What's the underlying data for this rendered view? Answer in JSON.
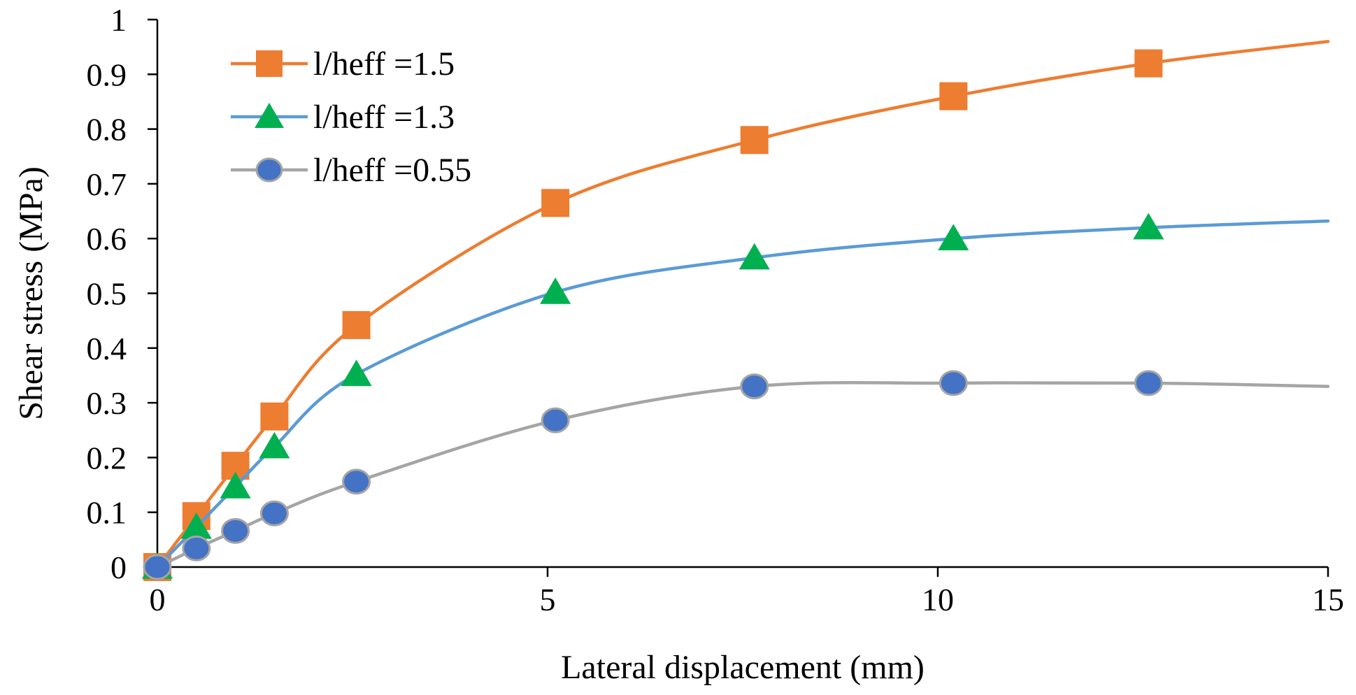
{
  "chart_data": {
    "type": "line",
    "title": "",
    "xlabel": "Lateral displacement (mm)",
    "ylabel": "Shear stress (MPa)",
    "xlim": [
      0,
      15
    ],
    "ylim": [
      0,
      1
    ],
    "xticks": [
      0,
      5,
      10,
      15
    ],
    "xtick_labels": [
      "0",
      "5",
      "10",
      "15"
    ],
    "yticks": [
      0,
      0.1,
      0.2,
      0.3,
      0.4,
      0.5,
      0.6,
      0.7,
      0.8,
      0.9,
      1
    ],
    "ytick_labels": [
      "0",
      "0.1",
      "0.2",
      "0.3",
      "0.4",
      "0.5",
      "0.6",
      "0.7",
      "0.8",
      "0.9",
      "1"
    ],
    "grid": false,
    "legend_position": "top-left",
    "series": [
      {
        "name": "l/heff =1.5",
        "color": "#ED7D31",
        "marker": "square",
        "marker_color": "#ED7D31",
        "x": [
          0,
          0.5,
          1.0,
          1.5,
          2.55,
          5.1,
          7.65,
          10.2,
          12.7
        ],
        "y": [
          0,
          0.093,
          0.185,
          0.275,
          0.442,
          0.665,
          0.78,
          0.86,
          0.92
        ],
        "line_end": [
          15,
          0.96
        ]
      },
      {
        "name": "l/heff =1.3",
        "color": "#5B9BD5",
        "marker": "triangle",
        "marker_color": "#00B050",
        "x": [
          0,
          0.5,
          1.0,
          1.5,
          2.55,
          5.1,
          7.65,
          10.2,
          12.7
        ],
        "y": [
          0,
          0.073,
          0.147,
          0.22,
          0.352,
          0.502,
          0.565,
          0.6,
          0.62
        ],
        "line_end": [
          15,
          0.632
        ]
      },
      {
        "name": "l/heff =0.55",
        "color": "#A5A5A5",
        "marker": "circle",
        "marker_color": "#4472C4",
        "x": [
          0,
          0.5,
          1.0,
          1.5,
          2.55,
          5.1,
          7.65,
          10.2,
          12.7
        ],
        "y": [
          0,
          0.034,
          0.066,
          0.098,
          0.156,
          0.268,
          0.33,
          0.336,
          0.336
        ],
        "line_end": [
          15,
          0.33
        ]
      }
    ]
  }
}
